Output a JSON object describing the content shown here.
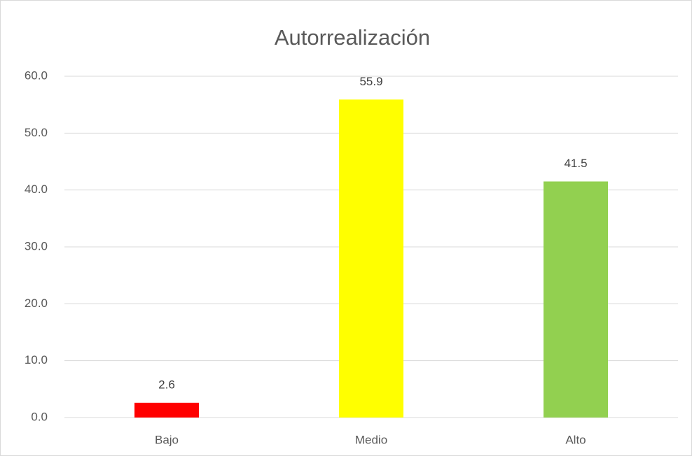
{
  "chart_data": {
    "type": "bar",
    "title": "Autorrealización",
    "categories": [
      "Bajo",
      "Medio",
      "Alto"
    ],
    "values": [
      2.6,
      55.9,
      41.5
    ],
    "colors": [
      "#ff0000",
      "#ffff00",
      "#92d050"
    ],
    "ylim": [
      0,
      60
    ],
    "yticks": [
      {
        "value": 0,
        "label": "0.0"
      },
      {
        "value": 10,
        "label": "10.0"
      },
      {
        "value": 20,
        "label": "20.0"
      },
      {
        "value": 30,
        "label": "30.0"
      },
      {
        "value": 40,
        "label": "40.0"
      },
      {
        "value": 50,
        "label": "50.0"
      },
      {
        "value": 60,
        "label": "60.0"
      }
    ],
    "grid": true,
    "data_labels": true
  }
}
